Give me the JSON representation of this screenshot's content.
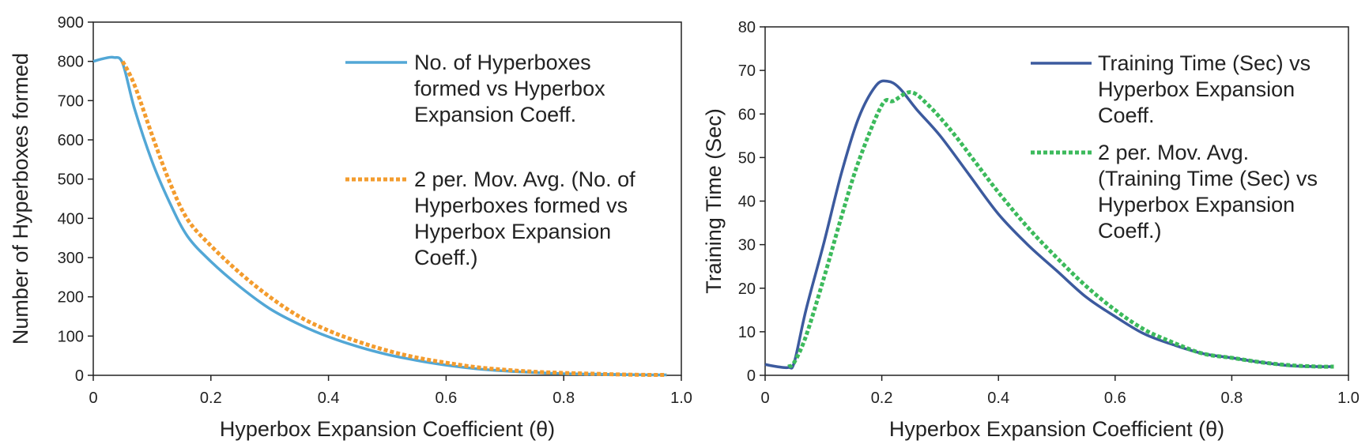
{
  "chart_data": [
    {
      "type": "line",
      "title": "",
      "xlabel": "Hyperbox Expansion Coefficient (θ)",
      "ylabel": "Number of Hyperboxes formed",
      "xlim": [
        0,
        1.0
      ],
      "ylim": [
        0,
        900
      ],
      "xticks": [
        "0",
        "0.2",
        "0.4",
        "0.6",
        "0.8",
        "1.0"
      ],
      "xtick_values": [
        0,
        0.2,
        0.4,
        0.6,
        0.8,
        1.0
      ],
      "yticks": [
        "0",
        "100",
        "200",
        "300",
        "400",
        "500",
        "600",
        "700",
        "800",
        "900"
      ],
      "ytick_values": [
        0,
        100,
        200,
        300,
        400,
        500,
        600,
        700,
        800,
        900
      ],
      "grid": false,
      "legend_position": "top-right",
      "series": [
        {
          "name": "No. of Hyperboxes formed vs Hyperbox Expansion Coeff.",
          "legend_lines": [
            "No. of Hyperboxes",
            "formed vs Hyperbox",
            "Expansion Coeff."
          ],
          "color": "#52a7d6",
          "style": "solid",
          "x": [
            0,
            0.02,
            0.035,
            0.05,
            0.07,
            0.1,
            0.13,
            0.16,
            0.2,
            0.25,
            0.3,
            0.35,
            0.4,
            0.45,
            0.5,
            0.55,
            0.6,
            0.65,
            0.7,
            0.75,
            0.8,
            0.85,
            0.9,
            0.95,
            0.975
          ],
          "y": [
            800,
            808,
            810,
            795,
            680,
            545,
            440,
            355,
            290,
            225,
            170,
            130,
            98,
            73,
            53,
            38,
            26,
            17,
            11,
            7,
            4,
            3,
            2,
            1,
            1
          ]
        },
        {
          "name": "2 per. Mov. Avg. (No. of Hyperboxes formed vs Hyperbox Expansion Coeff.)",
          "legend_lines": [
            "2 per. Mov. Avg. (No. of",
            "Hyperboxes formed vs",
            "Hyperbox Expansion",
            "Coeff.)"
          ],
          "color": "#f39c2e",
          "style": "dotted",
          "x": [
            0.05,
            0.07,
            0.1,
            0.13,
            0.16,
            0.2,
            0.25,
            0.3,
            0.35,
            0.4,
            0.45,
            0.5,
            0.55,
            0.6,
            0.65,
            0.7,
            0.75,
            0.8,
            0.85,
            0.9,
            0.95,
            0.975
          ],
          "y": [
            800,
            740,
            612,
            492,
            398,
            330,
            260,
            200,
            150,
            114,
            86,
            63,
            45,
            32,
            21,
            14,
            9,
            6,
            4,
            2,
            1,
            1
          ]
        }
      ]
    },
    {
      "type": "line",
      "title": "",
      "xlabel": "Hyperbox Expansion Coefficient (θ)",
      "ylabel": "Training Time (Sec)",
      "xlim": [
        0,
        1.0
      ],
      "ylim": [
        0,
        80
      ],
      "xticks": [
        "0",
        "0.2",
        "0.4",
        "0.6",
        "0.8",
        "1.0"
      ],
      "xtick_values": [
        0,
        0.2,
        0.4,
        0.6,
        0.8,
        1.0
      ],
      "yticks": [
        "0",
        "10",
        "20",
        "30",
        "40",
        "50",
        "60",
        "70",
        "80"
      ],
      "ytick_values": [
        0,
        10,
        20,
        30,
        40,
        50,
        60,
        70,
        80
      ],
      "grid": false,
      "legend_position": "top-right",
      "series": [
        {
          "name": "Training Time (Sec) vs Hyperbox Expansion Coeff.",
          "legend_lines": [
            "Training Time (Sec) vs",
            "Hyperbox Expansion",
            "Coeff."
          ],
          "color": "#3c5a9e",
          "style": "solid",
          "x": [
            0,
            0.02,
            0.04,
            0.05,
            0.07,
            0.1,
            0.13,
            0.16,
            0.19,
            0.21,
            0.23,
            0.26,
            0.3,
            0.35,
            0.4,
            0.45,
            0.5,
            0.55,
            0.6,
            0.65,
            0.7,
            0.75,
            0.8,
            0.85,
            0.9,
            0.95,
            0.975
          ],
          "y": [
            2.5,
            2,
            1.8,
            3,
            15,
            30,
            46,
            59,
            66.5,
            67.5,
            66,
            61,
            55,
            46,
            37,
            30,
            24,
            18,
            13.5,
            9.5,
            7,
            5,
            4,
            3,
            2.2,
            2,
            2
          ]
        },
        {
          "name": "2 per. Mov. Avg. (Training Time (Sec) vs Hyperbox Expansion Coeff.)",
          "legend_lines": [
            "2 per. Mov. Avg.",
            "(Training Time (Sec) vs",
            "Hyperbox Expansion",
            "Coeff.)"
          ],
          "color": "#3cba5c",
          "style": "dotted",
          "x": [
            0.04,
            0.05,
            0.07,
            0.1,
            0.13,
            0.16,
            0.2,
            0.22,
            0.25,
            0.28,
            0.32,
            0.36,
            0.4,
            0.45,
            0.5,
            0.55,
            0.6,
            0.65,
            0.7,
            0.75,
            0.8,
            0.85,
            0.9,
            0.95,
            0.975
          ],
          "y": [
            2,
            3,
            9,
            22,
            36,
            49,
            62,
            63,
            65,
            62,
            56,
            49,
            42,
            34,
            27,
            20.5,
            15,
            10.5,
            7.5,
            5,
            4,
            3,
            2.3,
            2,
            2
          ]
        }
      ]
    }
  ]
}
